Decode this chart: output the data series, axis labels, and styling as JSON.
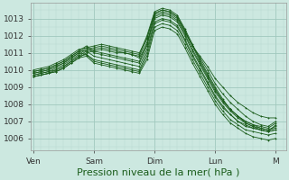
{
  "background_color": "#cce8e0",
  "plot_bg_color": "#cce8e0",
  "grid_color_major": "#a0c8be",
  "grid_color_minor": "#b8d8d0",
  "line_color": "#1a5c1a",
  "xlabel": "Pression niveau de la mer( hPa )",
  "xlabel_fontsize": 8,
  "tick_labels_x": [
    "Ven",
    "Sam",
    "Dim",
    "Lun",
    "M"
  ],
  "tick_positions_x": [
    0,
    24,
    48,
    72,
    96
  ],
  "ylim": [
    1005.3,
    1013.9
  ],
  "xlim": [
    -1,
    100
  ],
  "yticks": [
    1006,
    1007,
    1008,
    1009,
    1010,
    1011,
    1012,
    1013
  ],
  "series": [
    [
      0,
      1009.6,
      3,
      1009.7,
      6,
      1009.8,
      9,
      1009.9,
      12,
      1010.1,
      15,
      1010.4,
      18,
      1010.7,
      21,
      1011.0,
      24,
      1011.1,
      27,
      1011.2,
      30,
      1011.1,
      33,
      1011.0,
      36,
      1011.0,
      39,
      1010.9,
      42,
      1010.7,
      45,
      1011.5,
      48,
      1013.2,
      51,
      1013.4,
      54,
      1013.3,
      57,
      1013.0,
      60,
      1012.2,
      63,
      1011.4,
      66,
      1010.8,
      69,
      1010.2,
      72,
      1009.5,
      75,
      1009.0,
      78,
      1008.5,
      81,
      1008.1,
      84,
      1007.8,
      87,
      1007.5,
      90,
      1007.3,
      93,
      1007.2,
      96,
      1007.2
    ],
    [
      0,
      1009.6,
      3,
      1009.7,
      6,
      1009.8,
      9,
      1010.0,
      12,
      1010.2,
      15,
      1010.5,
      18,
      1010.8,
      21,
      1011.1,
      24,
      1011.2,
      27,
      1011.3,
      30,
      1011.2,
      33,
      1011.1,
      36,
      1011.0,
      39,
      1010.9,
      42,
      1010.8,
      45,
      1011.8,
      48,
      1013.3,
      51,
      1013.5,
      54,
      1013.4,
      57,
      1013.1,
      60,
      1012.3,
      63,
      1011.4,
      66,
      1010.7,
      69,
      1010.0,
      72,
      1009.2,
      75,
      1008.6,
      78,
      1008.1,
      81,
      1007.7,
      84,
      1007.3,
      87,
      1007.0,
      90,
      1006.8,
      93,
      1006.7,
      96,
      1007.0
    ],
    [
      0,
      1009.7,
      3,
      1009.8,
      6,
      1009.9,
      9,
      1010.1,
      12,
      1010.3,
      15,
      1010.6,
      18,
      1010.9,
      21,
      1011.2,
      24,
      1011.3,
      27,
      1011.4,
      30,
      1011.3,
      33,
      1011.2,
      36,
      1011.1,
      39,
      1011.0,
      42,
      1010.9,
      45,
      1012.0,
      48,
      1013.4,
      51,
      1013.6,
      54,
      1013.5,
      57,
      1013.2,
      60,
      1012.4,
      63,
      1011.5,
      66,
      1010.6,
      69,
      1009.8,
      72,
      1009.0,
      75,
      1008.3,
      78,
      1007.7,
      81,
      1007.3,
      84,
      1006.9,
      87,
      1006.7,
      90,
      1006.5,
      93,
      1006.4,
      96,
      1006.8
    ],
    [
      0,
      1009.8,
      3,
      1009.9,
      6,
      1010.0,
      9,
      1010.2,
      12,
      1010.4,
      15,
      1010.7,
      18,
      1011.0,
      21,
      1011.3,
      24,
      1011.4,
      27,
      1011.5,
      30,
      1011.4,
      33,
      1011.3,
      36,
      1011.2,
      39,
      1011.1,
      42,
      1011.0,
      45,
      1011.9,
      48,
      1013.3,
      51,
      1013.5,
      54,
      1013.4,
      57,
      1013.1,
      60,
      1012.3,
      63,
      1011.4,
      66,
      1010.5,
      69,
      1009.7,
      72,
      1008.9,
      75,
      1008.2,
      78,
      1007.7,
      81,
      1007.3,
      84,
      1007.0,
      87,
      1006.8,
      90,
      1006.6,
      93,
      1006.5,
      96,
      1006.7
    ],
    [
      0,
      1009.9,
      3,
      1010.0,
      6,
      1010.1,
      9,
      1010.3,
      12,
      1010.5,
      15,
      1010.8,
      18,
      1011.1,
      21,
      1011.4,
      24,
      1011.1,
      27,
      1011.0,
      30,
      1010.9,
      33,
      1010.8,
      36,
      1010.7,
      39,
      1010.6,
      42,
      1010.5,
      45,
      1011.6,
      48,
      1013.1,
      51,
      1013.3,
      54,
      1013.2,
      57,
      1012.9,
      60,
      1012.1,
      63,
      1011.2,
      66,
      1010.4,
      69,
      1009.6,
      72,
      1008.8,
      75,
      1008.2,
      78,
      1007.7,
      81,
      1007.3,
      84,
      1007.0,
      87,
      1006.8,
      90,
      1006.7,
      93,
      1006.6,
      96,
      1006.9
    ],
    [
      0,
      1010.0,
      3,
      1010.1,
      6,
      1010.2,
      9,
      1010.4,
      12,
      1010.6,
      15,
      1010.9,
      18,
      1011.2,
      21,
      1011.3,
      24,
      1011.0,
      27,
      1010.9,
      30,
      1010.8,
      33,
      1010.7,
      36,
      1010.6,
      39,
      1010.5,
      42,
      1010.4,
      45,
      1011.4,
      48,
      1013.0,
      51,
      1013.2,
      54,
      1013.1,
      57,
      1012.8,
      60,
      1012.0,
      63,
      1011.1,
      66,
      1010.3,
      69,
      1009.5,
      72,
      1008.7,
      75,
      1008.1,
      78,
      1007.6,
      81,
      1007.2,
      84,
      1006.9,
      87,
      1006.7,
      90,
      1006.6,
      93,
      1006.5,
      96,
      1006.6
    ],
    [
      0,
      1009.9,
      3,
      1010.0,
      6,
      1010.1,
      9,
      1010.3,
      12,
      1010.5,
      15,
      1010.8,
      18,
      1011.1,
      21,
      1011.1,
      24,
      1010.8,
      27,
      1010.7,
      30,
      1010.6,
      33,
      1010.5,
      36,
      1010.4,
      39,
      1010.3,
      42,
      1010.2,
      45,
      1011.2,
      48,
      1012.8,
      51,
      1013.0,
      54,
      1012.9,
      57,
      1012.6,
      60,
      1011.8,
      63,
      1010.9,
      66,
      1010.1,
      69,
      1009.3,
      72,
      1008.5,
      75,
      1007.9,
      78,
      1007.4,
      81,
      1007.0,
      84,
      1006.7,
      87,
      1006.6,
      90,
      1006.5,
      93,
      1006.4,
      96,
      1006.5
    ],
    [
      0,
      1009.8,
      3,
      1009.9,
      6,
      1010.0,
      9,
      1010.2,
      12,
      1010.4,
      15,
      1010.7,
      18,
      1011.0,
      21,
      1010.9,
      24,
      1010.6,
      27,
      1010.5,
      30,
      1010.4,
      33,
      1010.3,
      36,
      1010.2,
      39,
      1010.1,
      42,
      1010.0,
      45,
      1011.0,
      48,
      1012.7,
      51,
      1012.9,
      54,
      1012.8,
      57,
      1012.5,
      60,
      1011.7,
      63,
      1010.8,
      66,
      1010.0,
      69,
      1009.2,
      72,
      1008.4,
      75,
      1007.8,
      78,
      1007.4,
      81,
      1007.0,
      84,
      1006.8,
      87,
      1006.6,
      90,
      1006.5,
      93,
      1006.4,
      96,
      1006.5
    ],
    [
      0,
      1009.7,
      3,
      1009.8,
      6,
      1009.9,
      9,
      1010.0,
      12,
      1010.2,
      15,
      1010.5,
      18,
      1010.8,
      21,
      1010.9,
      24,
      1010.5,
      27,
      1010.4,
      30,
      1010.3,
      33,
      1010.2,
      36,
      1010.1,
      39,
      1010.0,
      42,
      1009.9,
      45,
      1010.8,
      48,
      1012.5,
      51,
      1012.7,
      54,
      1012.6,
      57,
      1012.3,
      60,
      1011.5,
      63,
      1010.6,
      66,
      1009.8,
      69,
      1009.0,
      72,
      1008.2,
      75,
      1007.6,
      78,
      1007.1,
      81,
      1006.8,
      84,
      1006.5,
      87,
      1006.4,
      90,
      1006.3,
      93,
      1006.2,
      96,
      1006.3
    ],
    [
      0,
      1009.6,
      3,
      1009.7,
      6,
      1009.8,
      9,
      1009.9,
      12,
      1010.1,
      15,
      1010.4,
      18,
      1010.7,
      21,
      1010.8,
      24,
      1010.4,
      27,
      1010.3,
      30,
      1010.2,
      33,
      1010.1,
      36,
      1010.0,
      39,
      1009.9,
      42,
      1009.8,
      45,
      1010.6,
      48,
      1012.3,
      51,
      1012.5,
      54,
      1012.4,
      57,
      1012.1,
      60,
      1011.3,
      63,
      1010.4,
      66,
      1009.6,
      69,
      1008.8,
      72,
      1008.0,
      75,
      1007.4,
      78,
      1006.9,
      81,
      1006.6,
      84,
      1006.3,
      87,
      1006.1,
      90,
      1006.0,
      93,
      1005.9,
      96,
      1006.0
    ]
  ]
}
